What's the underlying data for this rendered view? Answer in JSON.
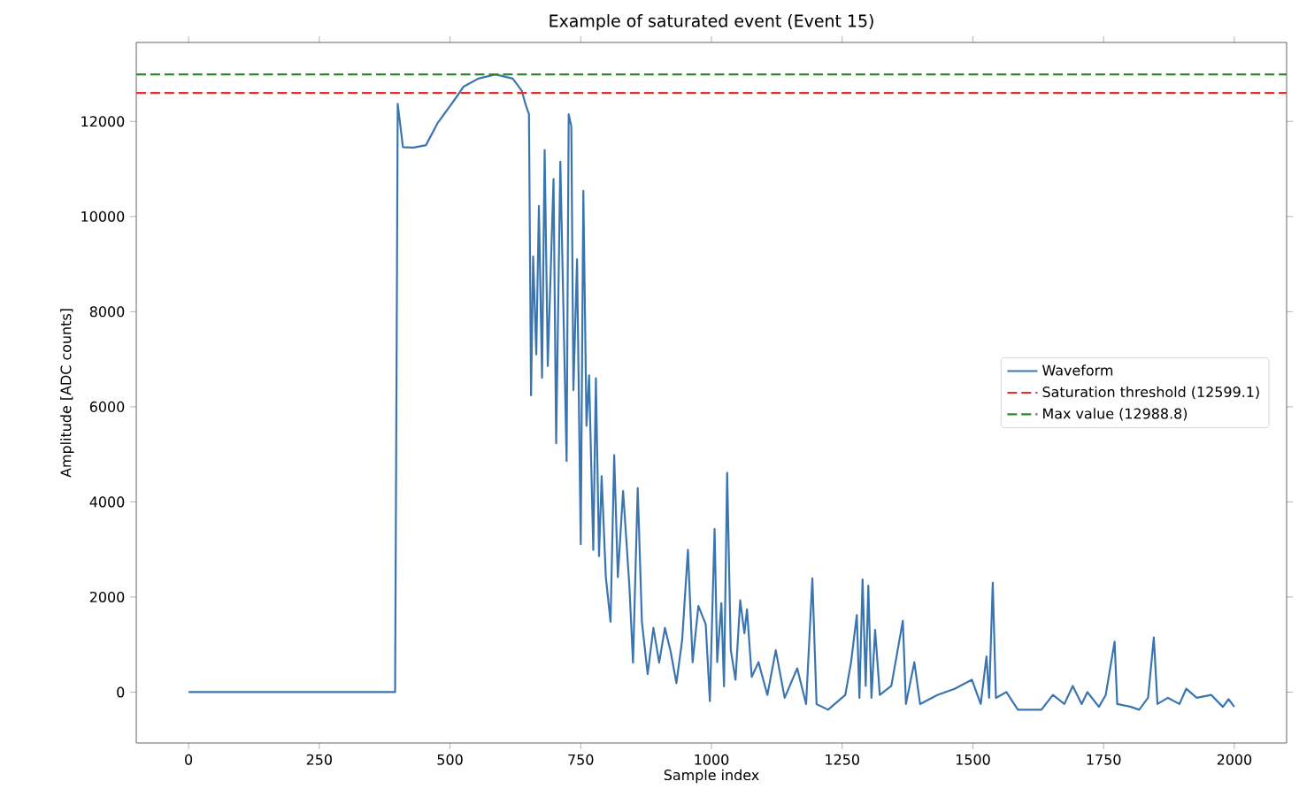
{
  "chart_data": {
    "type": "line",
    "title": "Example of saturated event (Event 15)",
    "xlabel": "Sample index",
    "ylabel": "Amplitude [ADC counts]",
    "xlim": [
      -100,
      2100
    ],
    "ylim": [
      -1070,
      13660
    ],
    "xticks": [
      0,
      250,
      500,
      750,
      1000,
      1250,
      1500,
      1750,
      2000
    ],
    "yticks": [
      0,
      2000,
      4000,
      6000,
      8000,
      10000,
      12000
    ],
    "legend": "right",
    "series": [
      {
        "name": "Waveform",
        "color": "#3b75af",
        "x": [
          0,
          100,
          200,
          300,
          395,
          400,
          410,
          430,
          454,
          476,
          509,
          526,
          554,
          587,
          620,
          637,
          645,
          651,
          655,
          659,
          665,
          670,
          676,
          681,
          687,
          698,
          703,
          711,
          723,
          727,
          732,
          736,
          743,
          750,
          755,
          761,
          766,
          774,
          779,
          785,
          790,
          798,
          807,
          814,
          821,
          831,
          843,
          850,
          859,
          867,
          878,
          889,
          900,
          911,
          922,
          933,
          944,
          955,
          964,
          975,
          989,
          997,
          1006,
          1011,
          1019,
          1024,
          1030,
          1037,
          1046,
          1055,
          1063,
          1068,
          1077,
          1090,
          1107,
          1123,
          1140,
          1164,
          1181,
          1193,
          1201,
          1223,
          1256,
          1267,
          1278,
          1283,
          1289,
          1295,
          1300,
          1306,
          1313,
          1322,
          1344,
          1366,
          1372,
          1388,
          1399,
          1432,
          1465,
          1498,
          1515,
          1526,
          1531,
          1538,
          1544,
          1564,
          1586,
          1609,
          1631,
          1653,
          1675,
          1691,
          1708,
          1719,
          1741,
          1754,
          1771,
          1776,
          1802,
          1818,
          1835,
          1846,
          1853,
          1873,
          1895,
          1908,
          1928,
          1956,
          1978,
          1989,
          2000
        ],
        "values": [
          0,
          0,
          0,
          0,
          0,
          12370,
          11460,
          11450,
          11500,
          11960,
          12460,
          12730,
          12900,
          12988.8,
          12900,
          12650,
          12340,
          12150,
          6240,
          9160,
          7100,
          10220,
          6610,
          11400,
          6860,
          10790,
          5230,
          11150,
          4860,
          12150,
          11900,
          6350,
          9100,
          3110,
          10540,
          5600,
          6660,
          2990,
          6600,
          2860,
          4540,
          2420,
          1480,
          4980,
          2420,
          4230,
          2240,
          620,
          4290,
          1480,
          380,
          1350,
          620,
          1350,
          850,
          190,
          1100,
          2990,
          630,
          1810,
          1430,
          -190,
          3430,
          630,
          1870,
          120,
          4610,
          880,
          260,
          1930,
          1240,
          1740,
          320,
          630,
          -60,
          880,
          -120,
          500,
          -250,
          2390,
          -250,
          -370,
          -60,
          630,
          1620,
          -120,
          2370,
          130,
          2240,
          -120,
          1310,
          -60,
          130,
          1500,
          -250,
          630,
          -250,
          -60,
          70,
          260,
          -250,
          750,
          -120,
          2300,
          -120,
          0,
          -370,
          -370,
          -370,
          -60,
          -250,
          130,
          -250,
          0,
          -310,
          -60,
          1060,
          -250,
          -310,
          -370,
          -120,
          1150,
          -250,
          -120,
          -250,
          70,
          -120,
          -60,
          -310,
          -150,
          -310
        ]
      }
    ],
    "ref_lines": [
      {
        "axis": "y",
        "value": 12599.1,
        "label": "Saturation threshold (12599.1)",
        "color": "#e8302a",
        "line_style": "dashed"
      },
      {
        "axis": "y",
        "value": 12988.8,
        "label": "Max value (12988.8)",
        "color": "#2a8a2a",
        "line_style": "dashed"
      }
    ]
  }
}
